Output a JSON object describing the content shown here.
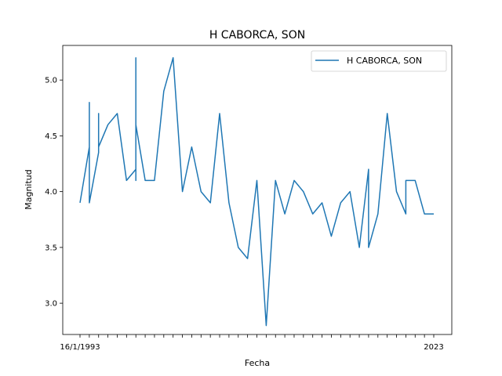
{
  "chart_data": {
    "type": "line",
    "title": "H CABORCA, SON",
    "xlabel": "Fecha",
    "ylabel": "Magnitud",
    "ylim": [
      2.72,
      5.31
    ],
    "y_ticks": [
      3.0,
      3.5,
      4.0,
      4.5,
      5.0
    ],
    "x_tick_labels_visible": [
      "16/1/1993",
      "",
      "",
      "",
      "",
      "",
      "",
      "",
      "",
      "",
      "",
      "",
      "",
      "",
      "",
      "",
      "",
      "",
      "",
      "",
      "",
      "",
      "",
      "",
      "",
      "",
      "",
      "",
      "",
      "",
      "",
      "",
      "",
      "",
      "",
      "",
      "",
      "",
      "2023"
    ],
    "grid": false,
    "legend_position": "top-right",
    "color": "#1f77b4",
    "series": [
      {
        "name": "H CABORCA, SON",
        "x": [
          0,
          1,
          1,
          1,
          1,
          1,
          2,
          2,
          2,
          3,
          4,
          5,
          6,
          6,
          6,
          6,
          6,
          6,
          7,
          8,
          9,
          10,
          11,
          12,
          13,
          14,
          15,
          16,
          17,
          18,
          19,
          20,
          21,
          22,
          23,
          24,
          24,
          24,
          25,
          26,
          27,
          28,
          29,
          30,
          31,
          31,
          31,
          32,
          33,
          34,
          34,
          35,
          35,
          36,
          36,
          37,
          38,
          38
        ],
        "values": [
          3.9,
          4.4,
          4.8,
          4.8,
          4.8,
          3.9,
          4.35,
          4.7,
          4.4,
          4.6,
          4.7,
          4.1,
          4.2,
          5.0,
          4.3,
          5.2,
          4.1,
          4.6,
          4.1,
          4.1,
          4.9,
          5.2,
          4.0,
          4.4,
          4.0,
          3.9,
          4.7,
          3.9,
          3.5,
          3.4,
          4.1,
          2.8,
          4.1,
          3.8,
          4.1,
          4.0,
          4.0,
          4.0,
          3.8,
          3.9,
          3.6,
          3.9,
          4.0,
          3.5,
          4.2,
          3.5,
          3.5,
          3.8,
          4.7,
          4.0,
          4.0,
          3.8,
          4.1,
          4.1,
          4.1,
          3.8,
          3.8,
          3.8
        ]
      }
    ]
  }
}
